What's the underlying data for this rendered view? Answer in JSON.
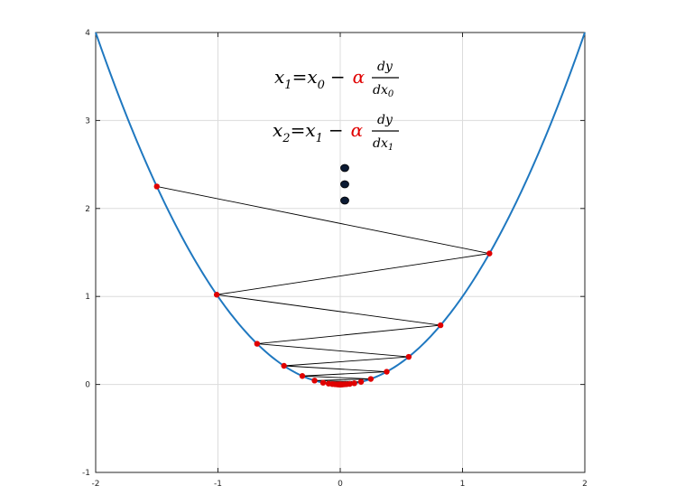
{
  "chart_data": {
    "type": "line",
    "title": "",
    "xlabel": "",
    "ylabel": "",
    "xlim": [
      -2,
      2
    ],
    "ylim": [
      -1,
      4
    ],
    "grid": true,
    "x_ticks": [
      "-2",
      "-1",
      "0",
      "1",
      "2"
    ],
    "y_ticks": [
      "-1",
      "0",
      "1",
      "2",
      "3",
      "4"
    ],
    "series": [
      {
        "kind": "curve",
        "function": "y = x^2",
        "x_range": [
          -2,
          2
        ],
        "color": "#1f78c0"
      },
      {
        "kind": "iterates",
        "color": "#e00000",
        "line_color": "#000000",
        "x": [
          -1.5,
          1.22,
          -1.01,
          0.82,
          -0.68,
          0.56,
          -0.46,
          0.38,
          -0.31,
          0.25,
          -0.21,
          0.17,
          -0.14,
          0.115,
          -0.095,
          0.078,
          -0.064,
          0.052,
          -0.043,
          0.035,
          -0.028,
          0.023,
          -0.019,
          0.015,
          -0.012,
          0.01,
          -0.008,
          0.006,
          -0.005,
          0.004,
          -0.003,
          0.002,
          -0.001,
          0.0005
        ],
        "y": [
          2.25,
          1.4884,
          1.0201,
          0.6724,
          0.4624,
          0.3136,
          0.2116,
          0.1444,
          0.0961,
          0.0625,
          0.0441,
          0.0289,
          0.0196,
          0.0132,
          0.009,
          0.0061,
          0.0041,
          0.0027,
          0.0018,
          0.0012,
          0.0008,
          0.0005,
          0.0004,
          0.0002,
          0.0001,
          0.0001,
          0.0001,
          0.0,
          0.0,
          0.0,
          0.0,
          0.0,
          0.0,
          0.0
        ]
      }
    ],
    "annotations": {
      "eq1": {
        "lhs_var": "x",
        "lhs_sub": "1",
        "equals": "=",
        "rhs_var": "x",
        "rhs_sub": "0",
        "minus": "−",
        "alpha": "α",
        "num": "dy",
        "den_var": "dx",
        "den_sub": "0"
      },
      "eq2": {
        "lhs_var": "x",
        "lhs_sub": "2",
        "equals": "=",
        "rhs_var": "x",
        "rhs_sub": "1",
        "minus": "−",
        "alpha": "α",
        "num": "dy",
        "den_var": "dx",
        "den_sub": "1"
      },
      "dots_count": 3,
      "alpha_color": "#e00000",
      "dots_color": "#0b1a33"
    }
  }
}
